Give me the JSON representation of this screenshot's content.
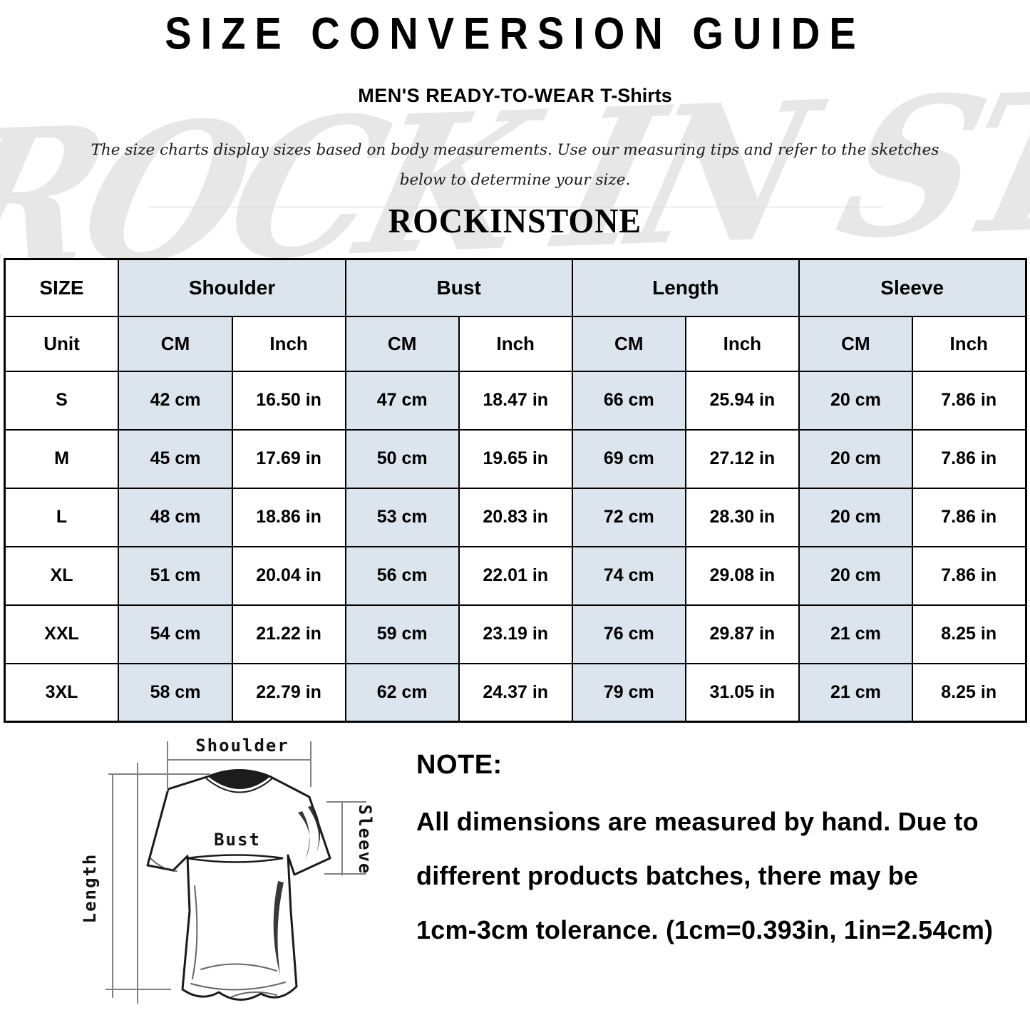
{
  "watermark": {
    "text": "ROCK IN STONE"
  },
  "header": {
    "title": "SIZE CONVERSION GUIDE",
    "subtitle_main": "MEN'S READY-TO-WEAR",
    "subtitle_sub": "T-Shirts",
    "description_line1": "The size charts display sizes based on body measurements. Use our measuring tips and refer to the sketches",
    "description_line2": "below to determine your size.",
    "brand": "ROCKINSTONE"
  },
  "table": {
    "corner_label": "SIZE",
    "unit_label": "Unit",
    "groups": [
      {
        "label": "Shoulder"
      },
      {
        "label": "Bust"
      },
      {
        "label": "Length"
      },
      {
        "label": "Sleeve"
      }
    ],
    "unit_columns": [
      "CM",
      "Inch",
      "CM",
      "Inch",
      "CM",
      "Inch",
      "CM",
      "Inch"
    ],
    "rows": [
      {
        "size": "S",
        "cells": [
          "42 cm",
          "16.50 in",
          "47 cm",
          "18.47 in",
          "66 cm",
          "25.94 in",
          "20 cm",
          "7.86 in"
        ]
      },
      {
        "size": "M",
        "cells": [
          "45 cm",
          "17.69 in",
          "50 cm",
          "19.65 in",
          "69 cm",
          "27.12 in",
          "20 cm",
          "7.86 in"
        ]
      },
      {
        "size": "L",
        "cells": [
          "48 cm",
          "18.86 in",
          "53 cm",
          "20.83 in",
          "72 cm",
          "28.30 in",
          "20 cm",
          "7.86 in"
        ]
      },
      {
        "size": "XL",
        "cells": [
          "51 cm",
          "20.04 in",
          "56 cm",
          "22.01 in",
          "74 cm",
          "29.08 in",
          "20 cm",
          "7.86 in"
        ]
      },
      {
        "size": "XXL",
        "cells": [
          "54 cm",
          "21.22 in",
          "59 cm",
          "23.19 in",
          "76 cm",
          "29.87 in",
          "21 cm",
          "8.25 in"
        ]
      },
      {
        "size": "3XL",
        "cells": [
          "58 cm",
          "22.79 in",
          "62 cm",
          "24.37 in",
          "79 cm",
          "31.05 in",
          "21 cm",
          "8.25 in"
        ]
      }
    ]
  },
  "diagram": {
    "labels": {
      "shoulder": "Shoulder",
      "bust": "Bust",
      "length": "Length",
      "sleeve": "Sleeve"
    }
  },
  "note": {
    "heading": "NOTE:",
    "line1": "All dimensions are measured by hand. Due to",
    "line2": "different products batches, there may be",
    "line3": "1cm-3cm tolerance. (1cm=0.393in, 1in=2.54cm)"
  },
  "colors": {
    "cell_blue": "#dce4ee",
    "border": "#000000",
    "watermark": "#e7e7e7"
  }
}
